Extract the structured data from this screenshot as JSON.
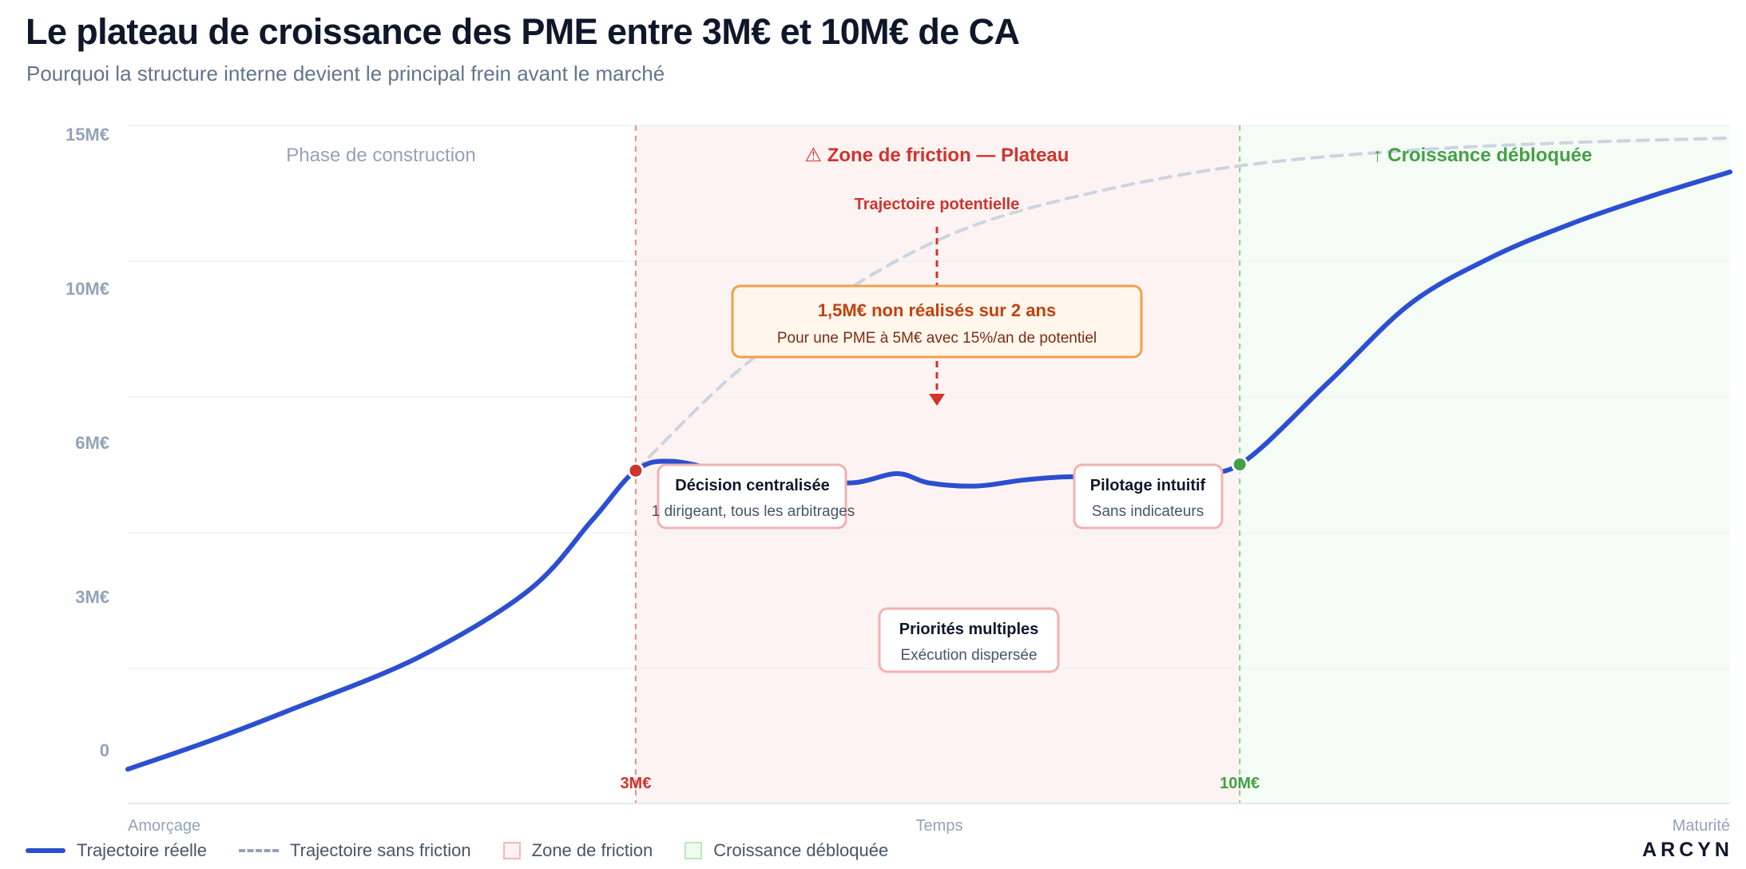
{
  "title": "Le plateau de croissance des PME entre 3M€ et 10M€ de CA",
  "subtitle": "Pourquoi la structure interne devient le principal frein avant le marché",
  "brand": "ARCYN",
  "colors": {
    "actual": "#2b4fcf",
    "potential": "#cbd5e1",
    "friction_fill": "#fdf3f3",
    "friction_accent": "#d0342c",
    "unlocked_fill": "#f5fcf5",
    "unlocked_accent": "#43a047",
    "callout_border": "#f0a04b",
    "callout_fill": "#fff6ec",
    "callout_text": "#c2410c",
    "box_border": "#f3b1b1",
    "axis_text": "#94a3b8"
  },
  "zones": {
    "construction": "Phase de construction",
    "friction": "⚠ Zone de friction — Plateau",
    "unlocked": "↑ Croissance débloquée"
  },
  "markers": {
    "start": "3M€",
    "end": "10M€"
  },
  "annotations": {
    "potential_label": "Trajectoire potentielle",
    "callout_title": "1,5M€ non réalisés sur 2 ans",
    "callout_sub": "Pour une PME à 5M€ avec 15%/an de potentiel",
    "box1_title": "Décision centralisée",
    "box1_sub": "1 dirigeant, tous les arbitrages",
    "box2_title": "Pilotage intuitif",
    "box2_sub": "Sans indicateurs",
    "box3_title": "Priorités multiples",
    "box3_sub": "Exécution dispersée"
  },
  "legend": {
    "actual": "Trajectoire réelle",
    "potential": "Trajectoire sans friction",
    "friction": "Zone de friction",
    "unlocked": "Croissance débloquée"
  },
  "chart_data": {
    "type": "line",
    "title": "Le plateau de croissance des PME entre 3M€ et 10M€ de CA",
    "xlabel": "Temps",
    "ylabel": "",
    "x_tick_labels": [
      "Amorçage",
      "Temps",
      "Maturité"
    ],
    "xlim": [
      0,
      100
    ],
    "y_ticks": [
      0,
      3,
      6,
      10,
      15
    ],
    "y_tick_labels": [
      "0",
      "3M€",
      "6M€",
      "10M€",
      "15M€"
    ],
    "grid": true,
    "legend_position": "bottom-left",
    "friction_zone": [
      31.7,
      69.4
    ],
    "series": [
      {
        "name": "Trajectoire réelle",
        "style": "solid",
        "x": [
          0,
          5,
          10,
          18,
          25,
          29,
          31.7,
          34,
          38,
          41,
          45,
          48,
          50,
          53,
          56,
          59,
          62,
          66,
          69.4,
          75,
          80,
          85,
          90,
          95,
          100
        ],
        "y": [
          -0.6,
          0.3,
          1.3,
          3.0,
          5.2,
          7.5,
          9.1,
          9.4,
          9.0,
          9.0,
          8.7,
          9.0,
          8.7,
          8.6,
          8.8,
          8.9,
          8.8,
          9.1,
          9.3,
          12.0,
          14.5,
          16.0,
          17.1,
          18.0,
          18.8
        ]
      },
      {
        "name": "Trajectoire sans friction",
        "style": "dashed",
        "x": [
          31.7,
          38,
          45,
          52,
          60,
          69.4,
          80,
          90,
          100
        ],
        "y": [
          9.1,
          12.3,
          15.0,
          16.9,
          18.1,
          19.0,
          19.5,
          19.75,
          19.9
        ]
      }
    ]
  }
}
